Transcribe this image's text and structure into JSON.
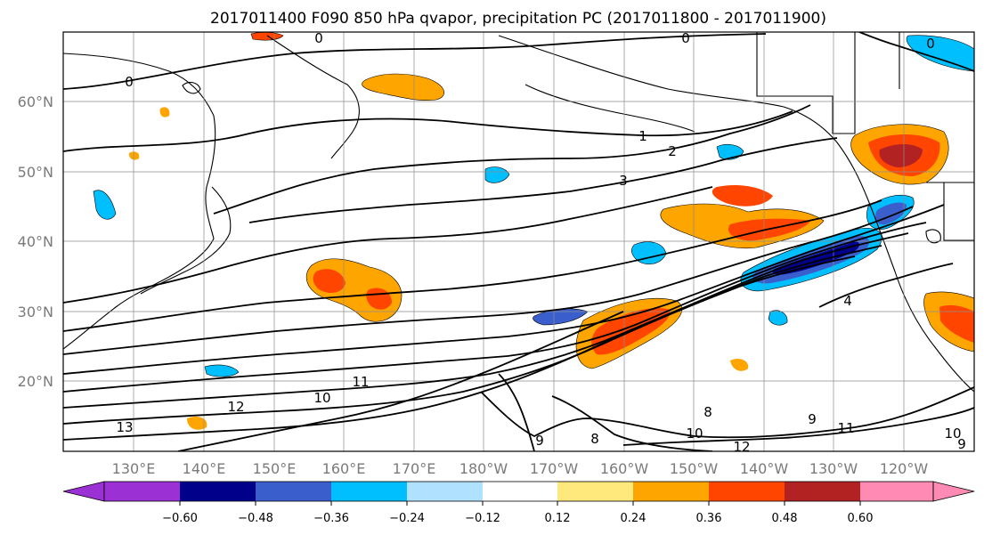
{
  "title": "2017011400 F090 850 hPa qvapor, precipitation PC (2017011800 - 2017011900)",
  "map": {
    "lon_labels": [
      "130°E",
      "140°E",
      "150°E",
      "160°E",
      "170°E",
      "180°W",
      "170°W",
      "160°W",
      "150°W",
      "140°W",
      "130°W",
      "120°W"
    ],
    "lat_labels": [
      "60°N",
      "50°N",
      "40°N",
      "30°N",
      "20°N"
    ],
    "lon_range": [
      122,
      188
    ],
    "lat_range": [
      10,
      70
    ],
    "gridlines": true
  },
  "colorbar": {
    "tick_labels": [
      "−0.60",
      "−0.48",
      "−0.36",
      "−0.24",
      "−0.12",
      "0.12",
      "0.24",
      "0.36",
      "0.48",
      "0.60"
    ],
    "colors": [
      "#9b30d4",
      "#00008b",
      "#3a5fcd",
      "#00bfff",
      "#b0e2ff",
      "#ffffff",
      "#ffe87c",
      "#ffa500",
      "#ff4500",
      "#b22222",
      "#ff8ab4"
    ],
    "extend": "both"
  },
  "contour_labels": [
    "0",
    "0",
    "0",
    "0",
    "1",
    "2",
    "3",
    "4",
    "8",
    "8",
    "9",
    "9",
    "10",
    "10",
    "11",
    "11",
    "12",
    "12",
    "13",
    "10",
    "9"
  ],
  "colors": {
    "land": "#000000",
    "grid": "#8c8c8c",
    "positive_high": "#ff4500",
    "negative_high": "#00008b"
  }
}
